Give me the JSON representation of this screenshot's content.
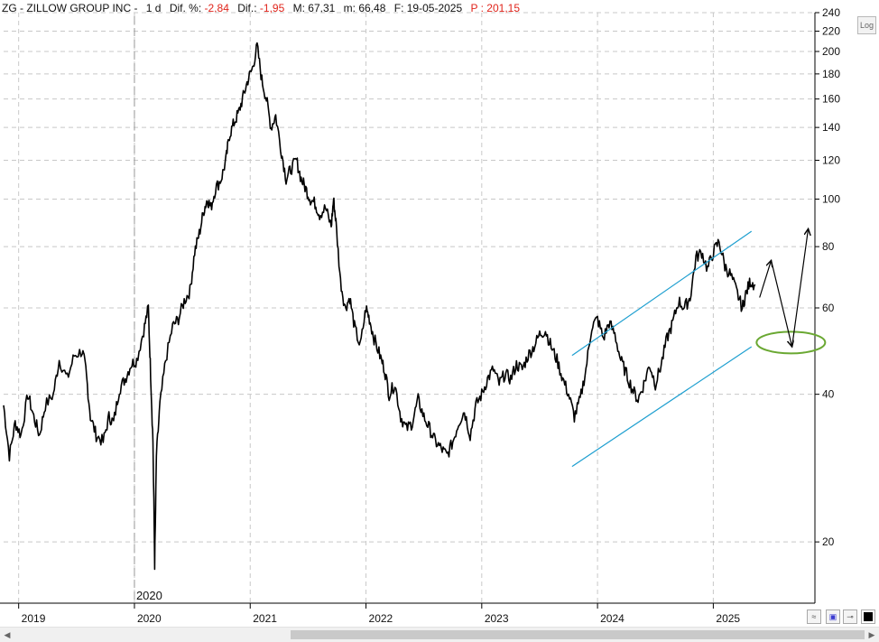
{
  "header": {
    "title": "ZG - ZILLOW GROUP INC -",
    "interval": "1 d",
    "dif_pct_label": "Dif. %:",
    "dif_pct_value": "-2,84",
    "dif_label": "Dif.:",
    "dif_value": "-1,95",
    "max_label": "M:",
    "max_value": "67,31",
    "min_label": "m:",
    "min_value": "66,48",
    "date_label": "F:",
    "date_value": "19-05-2025",
    "p_label": "P :",
    "p_value": "201,15"
  },
  "log_button_label": "Log",
  "colors": {
    "price": "#000000",
    "channel": "#1e9fd0",
    "ellipse": "#6aa832",
    "grid": "#c8c8c8",
    "negative": "#e0241b"
  },
  "tools": {
    "btn1_icon": "wave-icon",
    "btn2_icon": "save-icon",
    "btn3_icon": "pin-icon",
    "btn4_icon": "black-square-icon"
  },
  "chart_data": {
    "type": "line",
    "y_scale": "log",
    "ylim": [
      15,
      240
    ],
    "y_ticks": [
      20,
      40,
      60,
      80,
      100,
      120,
      140,
      160,
      180,
      200,
      220,
      240
    ],
    "x_ticks": [
      "2019",
      "2020",
      "2021",
      "2022",
      "2023",
      "2024",
      "2025"
    ],
    "x_range": [
      2018.87,
      2025.87
    ],
    "grid": true,
    "year_marker": "2020",
    "series": [
      {
        "values": [
          [
            2018.87,
            38
          ],
          [
            2018.92,
            30
          ],
          [
            2018.97,
            35
          ],
          [
            2019.02,
            33
          ],
          [
            2019.08,
            40
          ],
          [
            2019.13,
            36
          ],
          [
            2019.18,
            33
          ],
          [
            2019.23,
            38
          ],
          [
            2019.3,
            40
          ],
          [
            2019.35,
            47
          ],
          [
            2019.42,
            43
          ],
          [
            2019.48,
            48
          ],
          [
            2019.55,
            49
          ],
          [
            2019.58,
            45
          ],
          [
            2019.62,
            36
          ],
          [
            2019.67,
            33
          ],
          [
            2019.73,
            32
          ],
          [
            2019.78,
            36
          ],
          [
            2019.82,
            35
          ],
          [
            2019.87,
            41
          ],
          [
            2019.92,
            43
          ],
          [
            2019.97,
            46
          ],
          [
            2020.02,
            47
          ],
          [
            2020.08,
            54
          ],
          [
            2020.12,
            60
          ],
          [
            2020.14,
            44
          ],
          [
            2020.16,
            32
          ],
          [
            2020.175,
            18
          ],
          [
            2020.19,
            30
          ],
          [
            2020.22,
            38
          ],
          [
            2020.27,
            47
          ],
          [
            2020.33,
            55
          ],
          [
            2020.38,
            57
          ],
          [
            2020.43,
            62
          ],
          [
            2020.48,
            65
          ],
          [
            2020.52,
            78
          ],
          [
            2020.56,
            85
          ],
          [
            2020.6,
            95
          ],
          [
            2020.63,
            100
          ],
          [
            2020.66,
            96
          ],
          [
            2020.7,
            105
          ],
          [
            2020.75,
            110
          ],
          [
            2020.79,
            120
          ],
          [
            2020.82,
            135
          ],
          [
            2020.86,
            143
          ],
          [
            2020.9,
            150
          ],
          [
            2020.94,
            162
          ],
          [
            2020.98,
            175
          ],
          [
            2021.02,
            185
          ],
          [
            2021.06,
            205
          ],
          [
            2021.1,
            175
          ],
          [
            2021.14,
            160
          ],
          [
            2021.18,
            140
          ],
          [
            2021.22,
            148
          ],
          [
            2021.27,
            125
          ],
          [
            2021.31,
            110
          ],
          [
            2021.35,
            115
          ],
          [
            2021.4,
            120
          ],
          [
            2021.44,
            110
          ],
          [
            2021.48,
            105
          ],
          [
            2021.52,
            100
          ],
          [
            2021.56,
            98
          ],
          [
            2021.6,
            93
          ],
          [
            2021.65,
            96
          ],
          [
            2021.7,
            88
          ],
          [
            2021.72,
            100
          ],
          [
            2021.74,
            90
          ],
          [
            2021.78,
            68
          ],
          [
            2021.82,
            60
          ],
          [
            2021.86,
            63
          ],
          [
            2021.9,
            55
          ],
          [
            2021.95,
            50
          ],
          [
            2022.0,
            60
          ],
          [
            2022.03,
            57
          ],
          [
            2022.07,
            52
          ],
          [
            2022.12,
            48
          ],
          [
            2022.16,
            45
          ],
          [
            2022.2,
            40
          ],
          [
            2022.25,
            42
          ],
          [
            2022.3,
            36
          ],
          [
            2022.35,
            34
          ],
          [
            2022.4,
            35
          ],
          [
            2022.45,
            39
          ],
          [
            2022.5,
            36
          ],
          [
            2022.55,
            34
          ],
          [
            2022.6,
            32
          ],
          [
            2022.65,
            31
          ],
          [
            2022.7,
            30
          ],
          [
            2022.75,
            32
          ],
          [
            2022.8,
            35
          ],
          [
            2022.85,
            37
          ],
          [
            2022.9,
            33
          ],
          [
            2022.95,
            38
          ],
          [
            2023.0,
            40
          ],
          [
            2023.05,
            43
          ],
          [
            2023.1,
            45
          ],
          [
            2023.15,
            42
          ],
          [
            2023.2,
            44
          ],
          [
            2023.25,
            43
          ],
          [
            2023.3,
            46
          ],
          [
            2023.35,
            45
          ],
          [
            2023.4,
            48
          ],
          [
            2023.45,
            50
          ],
          [
            2023.5,
            53
          ],
          [
            2023.55,
            54
          ],
          [
            2023.6,
            50
          ],
          [
            2023.65,
            47
          ],
          [
            2023.7,
            43
          ],
          [
            2023.75,
            40
          ],
          [
            2023.8,
            36
          ],
          [
            2023.85,
            39
          ],
          [
            2023.9,
            45
          ],
          [
            2023.95,
            55
          ],
          [
            2024.0,
            57
          ],
          [
            2024.05,
            52
          ],
          [
            2024.1,
            56
          ],
          [
            2024.15,
            53
          ],
          [
            2024.2,
            47
          ],
          [
            2024.25,
            44
          ],
          [
            2024.3,
            41
          ],
          [
            2024.35,
            39
          ],
          [
            2024.4,
            42
          ],
          [
            2024.45,
            46
          ],
          [
            2024.5,
            42
          ],
          [
            2024.55,
            46
          ],
          [
            2024.6,
            52
          ],
          [
            2024.65,
            56
          ],
          [
            2024.7,
            62
          ],
          [
            2024.75,
            60
          ],
          [
            2024.8,
            63
          ],
          [
            2024.85,
            76
          ],
          [
            2024.9,
            78
          ],
          [
            2024.95,
            72
          ],
          [
            2025.0,
            78
          ],
          [
            2025.05,
            82
          ],
          [
            2025.1,
            73
          ],
          [
            2025.15,
            70
          ],
          [
            2025.2,
            65
          ],
          [
            2025.25,
            60
          ],
          [
            2025.28,
            64
          ],
          [
            2025.32,
            68
          ],
          [
            2025.36,
            67
          ]
        ]
      }
    ],
    "annotations": {
      "channel_upper": [
        [
          2023.78,
          48
        ],
        [
          2025.33,
          86
        ]
      ],
      "channel_lower": [
        [
          2023.78,
          28.5
        ],
        [
          2025.33,
          50
        ]
      ],
      "arrow_path": [
        [
          2025.4,
          63
        ],
        [
          2025.5,
          75
        ],
        [
          2025.68,
          50
        ],
        [
          2025.82,
          87
        ]
      ],
      "ellipse_center": [
        2025.67,
        51
      ]
    }
  }
}
